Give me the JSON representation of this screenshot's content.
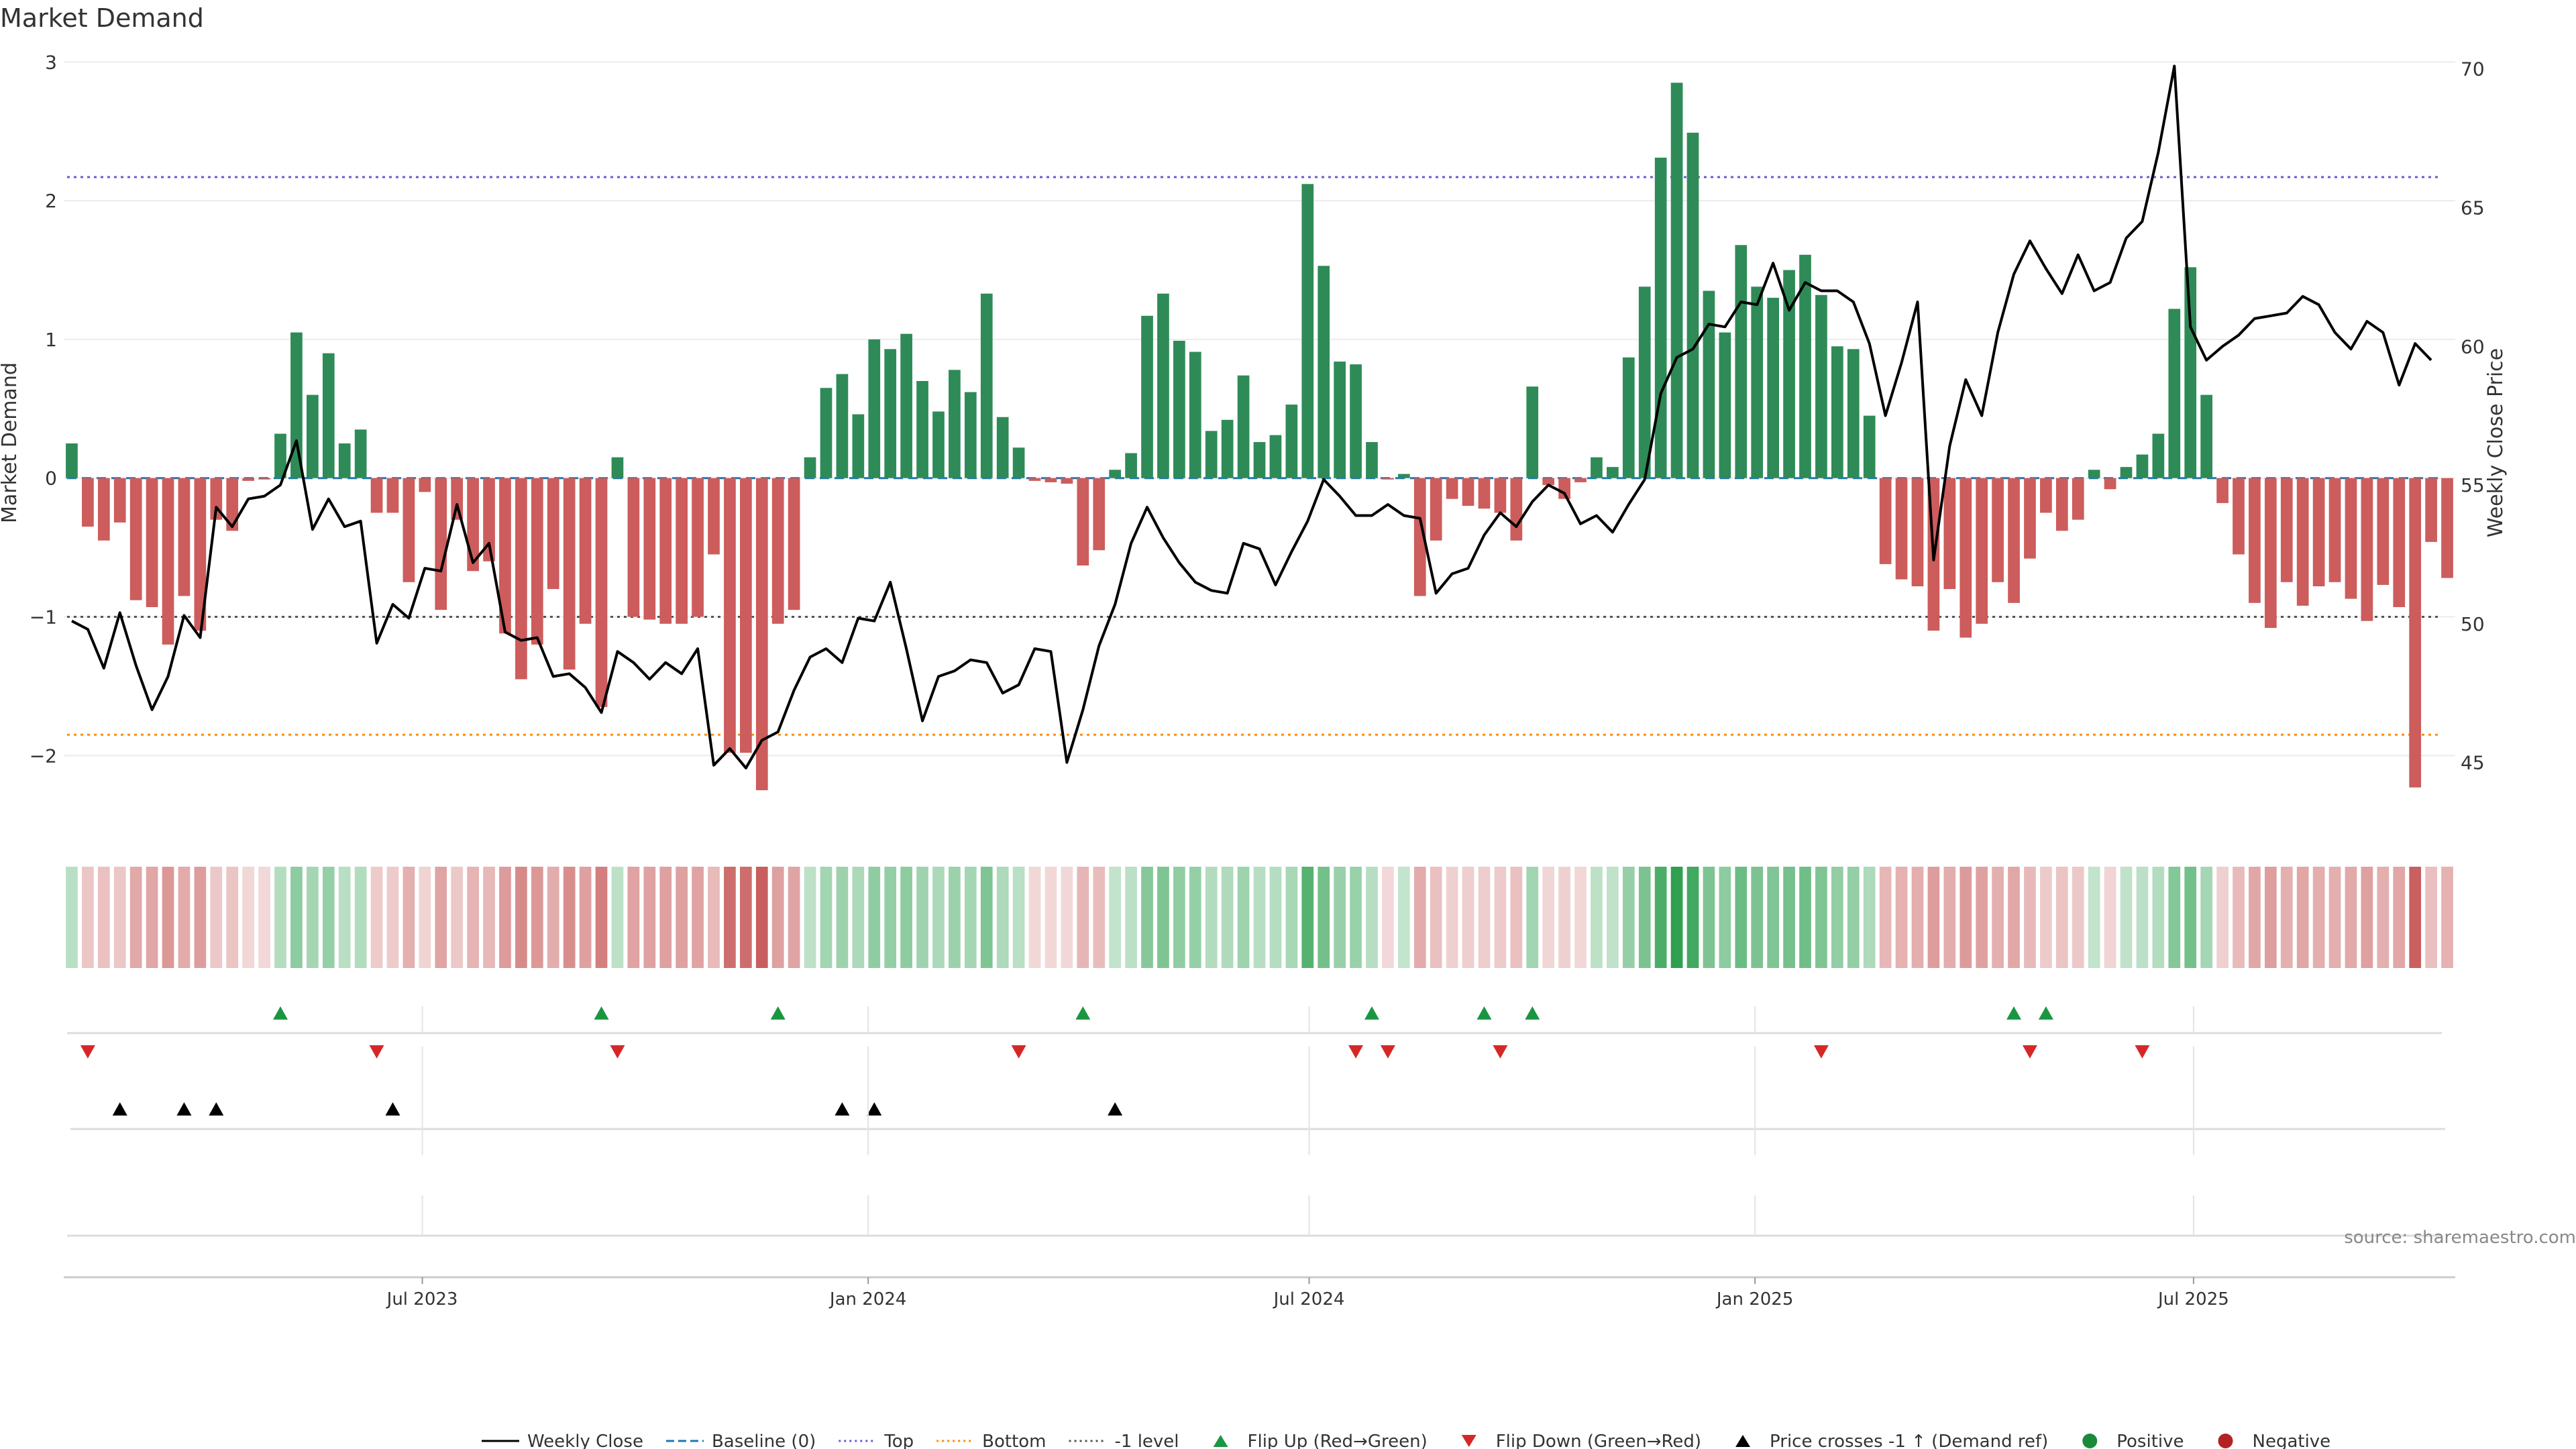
{
  "title": "Market Demand",
  "source": "source: sharemaestro.com",
  "legend": [
    {
      "label": "Weekly Close",
      "kind": "line",
      "color": "#000000"
    },
    {
      "label": "Baseline (0)",
      "kind": "dash",
      "color": "#1f77b4"
    },
    {
      "label": "Top",
      "kind": "dot",
      "color": "#6a5acd"
    },
    {
      "label": "Bottom",
      "kind": "dot",
      "color": "#ff8c00"
    },
    {
      "label": "-1 level",
      "kind": "dot",
      "color": "#555555"
    },
    {
      "label": "Flip Up (Red→Green)",
      "kind": "tri-up",
      "color": "#1a9641"
    },
    {
      "label": "Flip Down (Green→Red)",
      "kind": "tri-down",
      "color": "#d62728"
    },
    {
      "label": "Price crosses -1 ↑ (Demand ref)",
      "kind": "tri-up",
      "color": "#000000"
    },
    {
      "label": "Positive",
      "kind": "circle",
      "color": "#1a8a3a"
    },
    {
      "label": "Negative",
      "kind": "circle",
      "color": "#b22222"
    }
  ],
  "colors": {
    "positive": "#2e8b57",
    "negative": "#cd5c5c",
    "price": "#000000"
  },
  "chart_data": {
    "type": "bar",
    "title": "Market Demand",
    "xlabel": "",
    "ylabel": "Market Demand",
    "y2label": "Weekly Close Price",
    "ylim": [
      -2.55,
      3.05
    ],
    "y2lim": [
      42.5,
      70.5
    ],
    "yticks": [
      -2,
      -1,
      0,
      1,
      2,
      3
    ],
    "ytick_labels": [
      "−2",
      "−1",
      "0",
      "1",
      "2",
      "3"
    ],
    "y2ticks": [
      45,
      50,
      55,
      60,
      65,
      70
    ],
    "ytick2_labels": [
      "45",
      "50",
      "55",
      "60",
      "65",
      "70"
    ],
    "x_start": "2023-02-03",
    "x_end": "2025-10-17",
    "x_ticks": [
      {
        "date": "2023-07-01",
        "label": "Jul 2023"
      },
      {
        "date": "2024-01-01",
        "label": "Jan 2024"
      },
      {
        "date": "2024-07-01",
        "label": "Jul 2024"
      },
      {
        "date": "2025-01-01",
        "label": "Jan 2025"
      },
      {
        "date": "2025-07-01",
        "label": "Jul 2025"
      }
    ],
    "levels": {
      "top": 2.17,
      "bottom": -1.85,
      "minus_one": -1.0
    },
    "demand": [
      0.25,
      -0.35,
      -0.45,
      -0.32,
      -0.88,
      -0.93,
      -1.2,
      -0.85,
      -1.1,
      -0.3,
      -0.38,
      -0.02,
      -0.01,
      0.32,
      1.05,
      0.6,
      0.9,
      0.25,
      0.35,
      -0.25,
      -0.25,
      -0.75,
      -0.1,
      -0.95,
      -0.3,
      -0.67,
      -0.6,
      -1.12,
      -1.45,
      -1.2,
      -0.8,
      -1.38,
      -1.05,
      -1.65,
      0.15,
      -1.0,
      -1.02,
      -1.05,
      -1.05,
      -1.0,
      -0.55,
      -1.98,
      -1.98,
      -2.25,
      -1.05,
      -0.95,
      0.15,
      0.65,
      0.75,
      0.46,
      1.0,
      0.93,
      1.04,
      0.7,
      0.48,
      0.78,
      0.62,
      1.33,
      0.44,
      0.22,
      -0.02,
      -0.03,
      -0.04,
      -0.63,
      -0.52,
      0.06,
      0.18,
      1.17,
      1.33,
      0.99,
      0.91,
      0.34,
      0.42,
      0.74,
      0.26,
      0.31,
      0.53,
      2.12,
      1.53,
      0.84,
      0.82,
      0.26,
      -0.01,
      0.03,
      -0.85,
      -0.45,
      -0.15,
      -0.2,
      -0.22,
      -0.25,
      -0.45,
      0.66,
      -0.05,
      -0.15,
      -0.03,
      0.15,
      0.08,
      0.87,
      1.38,
      2.31,
      2.85,
      2.49,
      1.35,
      1.05,
      1.68,
      1.38,
      1.3,
      1.5,
      1.61,
      1.32,
      0.95,
      0.93,
      0.45,
      -0.62,
      -0.73,
      -0.78,
      -1.1,
      -0.8,
      -1.15,
      -1.05,
      -0.75,
      -0.9,
      -0.58,
      -0.25,
      -0.38,
      -0.3,
      0.06,
      -0.08,
      0.08,
      0.17,
      0.32,
      1.22,
      1.52,
      0.6,
      -0.18,
      -0.55,
      -0.9,
      -1.08,
      -0.75,
      -0.92,
      -0.78,
      -0.75,
      -0.87,
      -1.03,
      -0.77,
      -0.93,
      -2.23,
      -0.46,
      -0.72
    ],
    "price": [
      50.1,
      49.8,
      48.4,
      50.4,
      48.5,
      46.9,
      48.1,
      50.3,
      49.5,
      54.2,
      53.5,
      54.5,
      54.6,
      55.0,
      56.6,
      53.4,
      54.5,
      53.5,
      53.7,
      49.3,
      50.7,
      50.2,
      52.0,
      51.9,
      54.3,
      52.2,
      52.9,
      49.7,
      49.4,
      49.5,
      48.1,
      48.2,
      47.7,
      46.8,
      49.0,
      48.6,
      48.0,
      48.6,
      48.2,
      49.1,
      44.9,
      45.5,
      44.8,
      45.8,
      46.1,
      47.6,
      48.8,
      49.1,
      48.6,
      50.2,
      50.1,
      51.5,
      49.1,
      46.5,
      48.1,
      48.3,
      48.7,
      48.6,
      47.5,
      47.8,
      49.1,
      49.0,
      45.0,
      46.9,
      49.2,
      50.7,
      52.9,
      54.2,
      53.1,
      52.2,
      51.5,
      51.2,
      51.1,
      52.9,
      52.7,
      51.4,
      52.6,
      53.7,
      55.2,
      54.6,
      53.9,
      53.9,
      54.3,
      53.9,
      53.8,
      51.1,
      51.8,
      52.0,
      53.2,
      54.0,
      53.5,
      54.4,
      55.0,
      54.7,
      53.6,
      53.9,
      53.3,
      54.3,
      55.2,
      58.3,
      59.6,
      59.9,
      60.8,
      60.7,
      61.6,
      61.5,
      63.0,
      61.3,
      62.3,
      62.0,
      62.0,
      61.6,
      60.1,
      57.5,
      59.4,
      61.6,
      52.3,
      56.4,
      58.8,
      57.5,
      60.5,
      62.6,
      63.8,
      62.8,
      61.9,
      63.3,
      62.0,
      62.3,
      63.9,
      64.5,
      67.0,
      70.1,
      60.7,
      59.5,
      60.0,
      60.4,
      61.0,
      61.1,
      61.2,
      61.8,
      61.5,
      60.5,
      59.9,
      60.9,
      60.5,
      58.6,
      60.1,
      59.5
    ],
    "flip_up_idx": [
      13,
      33,
      44,
      63,
      81,
      88,
      91,
      121,
      123
    ],
    "flip_down_idx": [
      1,
      19,
      34,
      59,
      80,
      82,
      89,
      109,
      122,
      129
    ],
    "price_cross_idx": [
      3,
      7,
      9,
      20,
      48,
      50,
      65
    ]
  }
}
